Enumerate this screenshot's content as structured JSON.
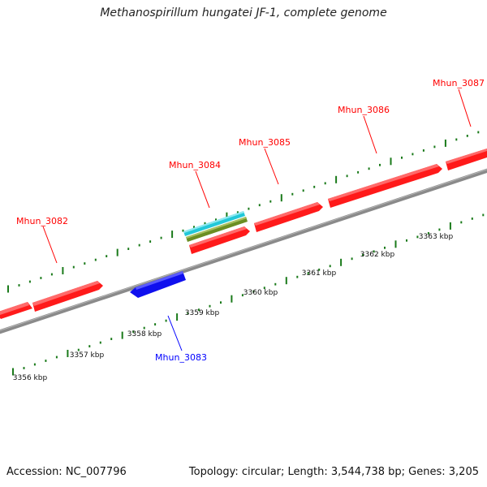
{
  "title": "Methanospirillum hungatei JF-1, complete genome",
  "footer": {
    "accession": "Accession: NC_007796",
    "summary": "Topology: circular; Length: 3,544,738 bp; Genes: 3,205"
  },
  "colors": {
    "forward_gene": "#ff0000",
    "reverse_gene": "#0000ff",
    "feature_cyan": "#22c8d8",
    "feature_olive": "#6b8e23",
    "backbone": "#808080",
    "tick": "#1a7a1a"
  },
  "ticks": [
    "3356 kbp",
    "3357 kbp",
    "3358 kbp",
    "3359 kbp",
    "3360 kbp",
    "3361 kbp",
    "3362 kbp",
    "3363 kbp"
  ],
  "genes": [
    {
      "name": "Mhun_3082",
      "strand": "+"
    },
    {
      "name": "Mhun_3083",
      "strand": "-"
    },
    {
      "name": "Mhun_3084",
      "strand": "+"
    },
    {
      "name": "Mhun_3085",
      "strand": "+"
    },
    {
      "name": "Mhun_3086",
      "strand": "+"
    },
    {
      "name": "Mhun_3087",
      "strand": "+"
    }
  ]
}
